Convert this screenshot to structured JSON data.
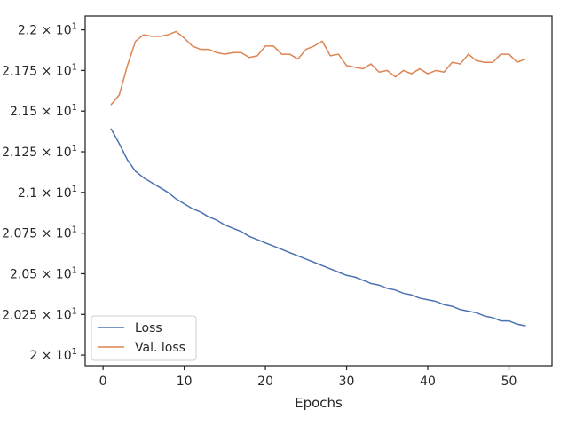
{
  "chart_data": {
    "type": "line",
    "title": "",
    "xlabel": "Epochs",
    "ylabel": "",
    "xlim": [
      -2.2,
      55.3
    ],
    "ylim": [
      19.935,
      22.085
    ],
    "xticks": [
      0,
      10,
      20,
      30,
      40,
      50
    ],
    "xtick_labels": [
      "0",
      "10",
      "20",
      "30",
      "40",
      "50"
    ],
    "yticks": [
      20.0,
      20.25,
      20.5,
      20.75,
      21.0,
      21.25,
      21.5,
      21.75,
      22.0
    ],
    "ytick_labels": [
      {
        "mantissa": "2",
        "exp": "1"
      },
      {
        "mantissa": "2.025",
        "exp": "1"
      },
      {
        "mantissa": "2.05",
        "exp": "1"
      },
      {
        "mantissa": "2.075",
        "exp": "1"
      },
      {
        "mantissa": "2.1",
        "exp": "1"
      },
      {
        "mantissa": "2.125",
        "exp": "1"
      },
      {
        "mantissa": "2.15",
        "exp": "1"
      },
      {
        "mantissa": "2.175",
        "exp": "1"
      },
      {
        "mantissa": "2.2",
        "exp": "1"
      }
    ],
    "ytick_times": "×",
    "ytick_base": "10",
    "grid": false,
    "legend_position": "lower-left",
    "x": [
      1,
      2,
      3,
      4,
      5,
      6,
      7,
      8,
      9,
      10,
      11,
      12,
      13,
      14,
      15,
      16,
      17,
      18,
      19,
      20,
      21,
      22,
      23,
      24,
      25,
      26,
      27,
      28,
      29,
      30,
      31,
      32,
      33,
      34,
      35,
      36,
      37,
      38,
      39,
      40,
      41,
      42,
      43,
      44,
      45,
      46,
      47,
      48,
      49,
      50,
      51,
      52
    ],
    "series": [
      {
        "name": "Loss",
        "color": "#4c72b0",
        "values": [
          21.39,
          21.3,
          21.2,
          21.13,
          21.09,
          21.06,
          21.03,
          21.0,
          20.96,
          20.93,
          20.9,
          20.88,
          20.85,
          20.83,
          20.8,
          20.78,
          20.76,
          20.73,
          20.71,
          20.69,
          20.67,
          20.65,
          20.63,
          20.61,
          20.59,
          20.57,
          20.55,
          20.53,
          20.51,
          20.49,
          20.48,
          20.46,
          20.44,
          20.43,
          20.41,
          20.4,
          20.38,
          20.37,
          20.35,
          20.34,
          20.33,
          20.31,
          20.3,
          20.28,
          20.27,
          20.26,
          20.24,
          20.23,
          20.21,
          20.21,
          20.19,
          20.18
        ]
      },
      {
        "name": "Val. loss",
        "color": "#dd8452",
        "values": [
          21.54,
          21.6,
          21.78,
          21.93,
          21.97,
          21.96,
          21.96,
          21.97,
          21.99,
          21.95,
          21.9,
          21.88,
          21.88,
          21.86,
          21.85,
          21.86,
          21.86,
          21.83,
          21.84,
          21.9,
          21.9,
          21.85,
          21.85,
          21.82,
          21.88,
          21.9,
          21.93,
          21.84,
          21.85,
          21.78,
          21.77,
          21.76,
          21.79,
          21.74,
          21.75,
          21.71,
          21.75,
          21.73,
          21.76,
          21.73,
          21.75,
          21.74,
          21.8,
          21.79,
          21.85,
          21.81,
          21.8,
          21.8,
          21.85,
          21.85,
          21.8,
          21.82
        ]
      }
    ]
  }
}
